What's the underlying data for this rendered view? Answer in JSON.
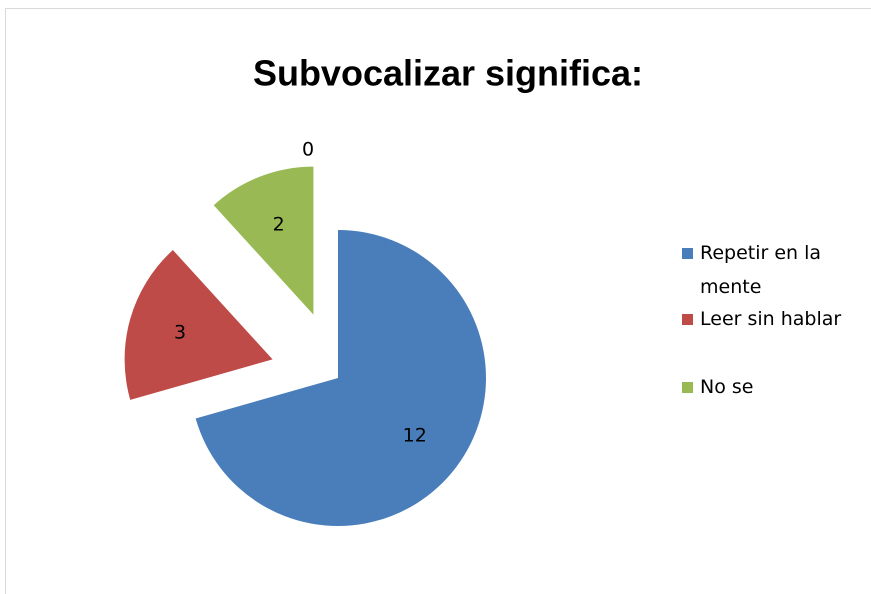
{
  "chart_data": {
    "type": "pie",
    "title": "Subvocalizar significa:",
    "categories": [
      "Repetir en la mente",
      "Leer sin hablar",
      "No se",
      null
    ],
    "values": [
      12,
      3,
      2,
      0
    ],
    "colors": [
      "#4a7ebb",
      "#be4b48",
      "#98b954",
      "#7d60a0"
    ],
    "legend": "right"
  }
}
